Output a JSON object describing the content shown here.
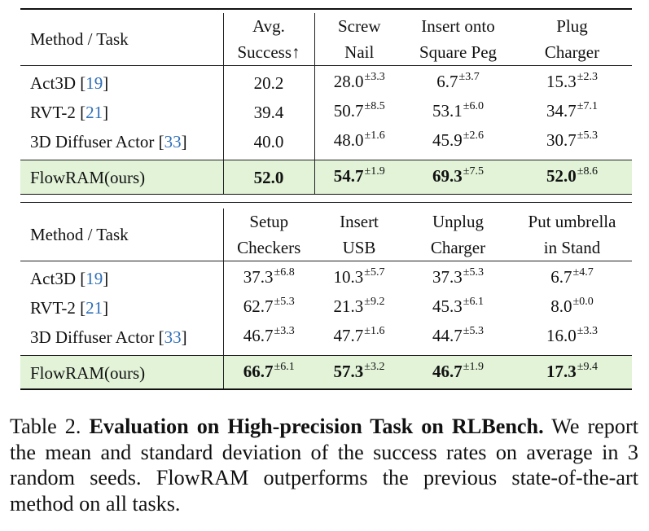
{
  "tables": [
    {
      "header": {
        "method_label": "Method / Task",
        "columns": [
          {
            "line1": "Avg.",
            "line2": "Success↑"
          },
          {
            "line1": "Screw",
            "line2": "Nail"
          },
          {
            "line1": "Insert onto",
            "line2": "Square Peg"
          },
          {
            "line1": "Plug",
            "line2": "Charger"
          }
        ]
      },
      "rows": [
        {
          "name": "Act3D",
          "cite": "19",
          "cells": [
            {
              "v": "20.2",
              "s": ""
            },
            {
              "v": "28.0",
              "s": "±3.3"
            },
            {
              "v": "6.7",
              "s": "±3.7"
            },
            {
              "v": "15.3",
              "s": "±2.3"
            }
          ]
        },
        {
          "name": "RVT-2",
          "cite": "21",
          "cells": [
            {
              "v": "39.4",
              "s": ""
            },
            {
              "v": "50.7",
              "s": "±8.5"
            },
            {
              "v": "53.1",
              "s": "±6.0"
            },
            {
              "v": "34.7",
              "s": "±7.1"
            }
          ]
        },
        {
          "name": "3D Diffuser Actor",
          "cite": "33",
          "cells": [
            {
              "v": "40.0",
              "s": ""
            },
            {
              "v": "48.0",
              "s": "±1.6"
            },
            {
              "v": "45.9",
              "s": "±2.6"
            },
            {
              "v": "30.7",
              "s": "±5.3"
            }
          ]
        }
      ],
      "ours": {
        "name": "FlowRAM(ours)",
        "cells": [
          {
            "v": "52.0",
            "s": ""
          },
          {
            "v": "54.7",
            "s": "±1.9"
          },
          {
            "v": "69.3",
            "s": "±7.5"
          },
          {
            "v": "52.0",
            "s": "±8.6"
          }
        ]
      }
    },
    {
      "header": {
        "method_label": "Method / Task",
        "columns": [
          {
            "line1": "Setup",
            "line2": "Checkers"
          },
          {
            "line1": "Insert",
            "line2": "USB"
          },
          {
            "line1": "Unplug",
            "line2": "Charger"
          },
          {
            "line1": "Put umbrella",
            "line2": "in Stand"
          }
        ]
      },
      "rows": [
        {
          "name": "Act3D",
          "cite": "19",
          "cells": [
            {
              "v": "37.3",
              "s": "±6.8"
            },
            {
              "v": "10.3",
              "s": "±5.7"
            },
            {
              "v": "37.3",
              "s": "±5.3"
            },
            {
              "v": "6.7",
              "s": "±4.7"
            }
          ]
        },
        {
          "name": "RVT-2",
          "cite": "21",
          "cells": [
            {
              "v": "62.7",
              "s": "±5.3"
            },
            {
              "v": "21.3",
              "s": "±9.2"
            },
            {
              "v": "45.3",
              "s": "±6.1"
            },
            {
              "v": "8.0",
              "s": "±0.0"
            }
          ]
        },
        {
          "name": "3D Diffuser Actor",
          "cite": "33",
          "cells": [
            {
              "v": "46.7",
              "s": "±3.3"
            },
            {
              "v": "47.7",
              "s": "±1.6"
            },
            {
              "v": "44.7",
              "s": "±5.3"
            },
            {
              "v": "16.0",
              "s": "±3.3"
            }
          ]
        }
      ],
      "ours": {
        "name": "FlowRAM(ours)",
        "cells": [
          {
            "v": "66.7",
            "s": "±6.1"
          },
          {
            "v": "57.3",
            "s": "±3.2"
          },
          {
            "v": "46.7",
            "s": "±1.9"
          },
          {
            "v": "17.3",
            "s": "±9.4"
          }
        ]
      }
    }
  ],
  "caption": {
    "label": "Table 2.",
    "title": "Evaluation on High-precision Task on RLBench.",
    "text": "We report the mean and standard deviation of the success rates on average in 3 random seeds. FlowRAM outperforms the previous state-of-the-art method on all tasks."
  },
  "colors": {
    "highlight": "#e2f3d8",
    "cite": "#2f6fb8"
  }
}
